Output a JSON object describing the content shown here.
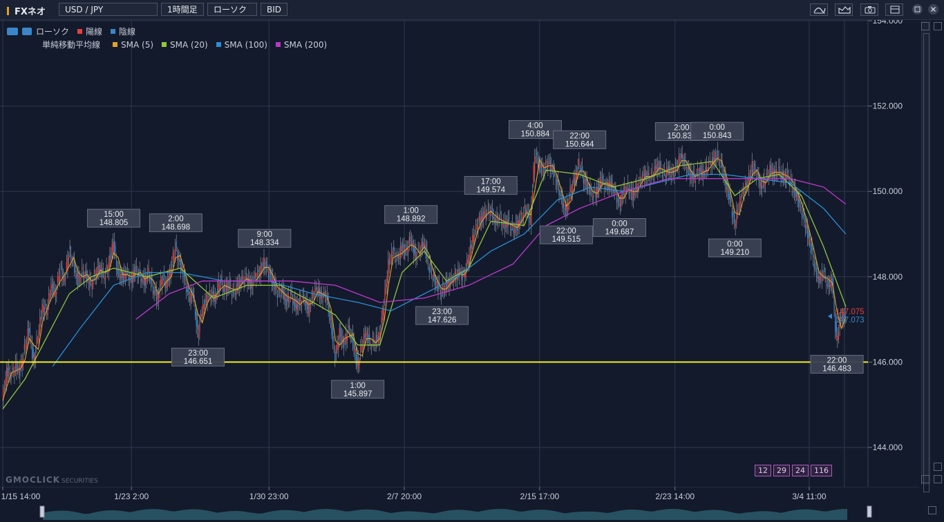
{
  "toolbar": {
    "brand": "FXネオ",
    "symbol": "USD / JPY",
    "timeframe": "1時間足",
    "chart_type": "ローソク",
    "price_type": "BID",
    "icons": [
      "indicator-icon",
      "draw-icon",
      "camera-icon",
      "window-icon",
      "maximize-icon",
      "close-icon"
    ]
  },
  "legend": {
    "row1": {
      "label": "ローソク",
      "items": [
        {
          "name": "陽線",
          "color": "#e5403e"
        },
        {
          "name": "陰線",
          "color": "#3b86c8"
        }
      ]
    },
    "row2": {
      "label": "単純移動平均線",
      "items": [
        {
          "name": "SMA (5)",
          "color": "#e2a224"
        },
        {
          "name": "SMA (20)",
          "color": "#93c739"
        },
        {
          "name": "SMA (100)",
          "color": "#2b8fd6"
        },
        {
          "name": "SMA (200)",
          "color": "#b638c6"
        }
      ]
    }
  },
  "watermark": {
    "main": "GMOCLICK",
    "sub": "SECURITIES"
  },
  "periods": [
    "12",
    "29",
    "24",
    "116"
  ],
  "current_prices": {
    "ask": "147.075",
    "bid": "147.073",
    "ask_color": "#e5403e",
    "bid_color": "#3b86c8"
  },
  "chart_data": {
    "type": "line",
    "x_ticks": [
      "1/15 14:00",
      "1/23 2:00",
      "1/30 23:00",
      "2/7 20:00",
      "2/15 17:00",
      "2/23 14:00",
      "3/4 11:00"
    ],
    "y_ticks": [
      "154.000",
      "152.000",
      "150.000",
      "148.000",
      "146.000",
      "144.000"
    ],
    "ylim": [
      143.6,
      154.3
    ],
    "horizontal_line": 146.0,
    "price_path": [
      [
        0,
        145.1
      ],
      [
        4,
        145.8
      ],
      [
        8,
        145.7
      ],
      [
        12,
        145.9
      ],
      [
        16,
        145.8
      ],
      [
        20,
        146.3
      ],
      [
        24,
        146.8
      ],
      [
        28,
        146.0
      ],
      [
        32,
        146.6
      ],
      [
        36,
        147.3
      ],
      [
        40,
        147.2
      ],
      [
        44,
        147.8
      ],
      [
        48,
        147.6
      ],
      [
        52,
        148.2
      ],
      [
        56,
        147.9
      ],
      [
        60,
        148.6
      ],
      [
        64,
        148.3
      ],
      [
        68,
        147.9
      ],
      [
        72,
        148.1
      ],
      [
        76,
        148.0
      ],
      [
        80,
        147.8
      ],
      [
        84,
        148.1
      ],
      [
        88,
        148.2
      ],
      [
        92,
        148.0
      ],
      [
        96,
        148.3
      ],
      [
        100,
        148.805
      ],
      [
        104,
        148.1
      ],
      [
        108,
        148.0
      ],
      [
        112,
        148.1
      ],
      [
        116,
        147.9
      ],
      [
        120,
        148.2
      ],
      [
        124,
        148.0
      ],
      [
        128,
        147.9
      ],
      [
        132,
        148.1
      ],
      [
        136,
        147.7
      ],
      [
        140,
        147.5
      ],
      [
        144,
        148.0
      ],
      [
        148,
        147.8
      ],
      [
        152,
        148.2
      ],
      [
        156,
        148.698
      ],
      [
        160,
        148.3
      ],
      [
        164,
        148.0
      ],
      [
        168,
        147.5
      ],
      [
        172,
        147.6
      ],
      [
        176,
        146.651
      ],
      [
        180,
        147.2
      ],
      [
        184,
        147.5
      ],
      [
        188,
        147.6
      ],
      [
        192,
        147.5
      ],
      [
        196,
        147.9
      ],
      [
        200,
        147.7
      ],
      [
        204,
        147.8
      ],
      [
        208,
        147.6
      ],
      [
        212,
        147.8
      ],
      [
        216,
        147.9
      ],
      [
        220,
        148.0
      ],
      [
        224,
        147.8
      ],
      [
        228,
        148.0
      ],
      [
        232,
        148.1
      ],
      [
        236,
        148.334
      ],
      [
        240,
        148.1
      ],
      [
        244,
        147.9
      ],
      [
        248,
        147.6
      ],
      [
        252,
        147.7
      ],
      [
        256,
        147.4
      ],
      [
        260,
        147.6
      ],
      [
        264,
        147.3
      ],
      [
        268,
        147.4
      ],
      [
        272,
        147.5
      ],
      [
        276,
        147.2
      ],
      [
        280,
        147.6
      ],
      [
        284,
        147.7
      ],
      [
        288,
        147.5
      ],
      [
        292,
        147.6
      ],
      [
        296,
        146.9
      ],
      [
        300,
        146.1
      ],
      [
        304,
        146.7
      ],
      [
        308,
        146.4
      ],
      [
        312,
        146.8
      ],
      [
        316,
        146.5
      ],
      [
        320,
        145.897
      ],
      [
        324,
        146.4
      ],
      [
        328,
        146.7
      ],
      [
        332,
        146.4
      ],
      [
        336,
        146.5
      ],
      [
        340,
        146.6
      ],
      [
        344,
        147.4
      ],
      [
        348,
        148.3
      ],
      [
        352,
        148.6
      ],
      [
        356,
        148.4
      ],
      [
        360,
        148.7
      ],
      [
        364,
        148.6
      ],
      [
        368,
        148.892
      ],
      [
        372,
        148.5
      ],
      [
        376,
        148.6
      ],
      [
        380,
        148.8
      ],
      [
        384,
        148.3
      ],
      [
        388,
        148.0
      ],
      [
        392,
        147.8
      ],
      [
        396,
        147.626
      ],
      [
        400,
        147.8
      ],
      [
        404,
        147.9
      ],
      [
        408,
        148.0
      ],
      [
        412,
        148.1
      ],
      [
        416,
        148.0
      ],
      [
        420,
        148.4
      ],
      [
        424,
        148.9
      ],
      [
        428,
        149.2
      ],
      [
        432,
        149.4
      ],
      [
        436,
        149.5
      ],
      [
        440,
        149.574
      ],
      [
        444,
        149.3
      ],
      [
        448,
        149.4
      ],
      [
        452,
        149.2
      ],
      [
        456,
        149.3
      ],
      [
        460,
        149.1
      ],
      [
        464,
        149.2
      ],
      [
        468,
        149.4
      ],
      [
        472,
        149.6
      ],
      [
        476,
        149.3
      ],
      [
        480,
        150.884
      ],
      [
        484,
        150.6
      ],
      [
        488,
        150.5
      ],
      [
        492,
        150.7
      ],
      [
        496,
        150.5
      ],
      [
        500,
        150.2
      ],
      [
        504,
        149.8
      ],
      [
        508,
        149.515
      ],
      [
        512,
        150.0
      ],
      [
        516,
        150.3
      ],
      [
        520,
        150.644
      ],
      [
        524,
        150.3
      ],
      [
        528,
        150.1
      ],
      [
        532,
        149.9
      ],
      [
        536,
        150.0
      ],
      [
        540,
        150.3
      ],
      [
        544,
        150.1
      ],
      [
        548,
        150.2
      ],
      [
        552,
        150.0
      ],
      [
        556,
        149.687
      ],
      [
        560,
        150.0
      ],
      [
        564,
        150.1
      ],
      [
        568,
        149.9
      ],
      [
        572,
        150.1
      ],
      [
        576,
        150.3
      ],
      [
        580,
        150.4
      ],
      [
        584,
        150.3
      ],
      [
        588,
        150.5
      ],
      [
        592,
        150.6
      ],
      [
        596,
        150.4
      ],
      [
        600,
        150.5
      ],
      [
        604,
        150.4
      ],
      [
        608,
        150.6
      ],
      [
        612,
        150.836
      ],
      [
        616,
        150.6
      ],
      [
        620,
        150.4
      ],
      [
        624,
        150.3
      ],
      [
        628,
        150.5
      ],
      [
        632,
        150.4
      ],
      [
        636,
        150.6
      ],
      [
        640,
        150.7
      ],
      [
        644,
        150.843
      ],
      [
        648,
        150.6
      ],
      [
        652,
        150.2
      ],
      [
        656,
        149.8
      ],
      [
        660,
        149.21
      ],
      [
        664,
        149.7
      ],
      [
        668,
        150.0
      ],
      [
        672,
        150.2
      ],
      [
        676,
        150.6
      ],
      [
        680,
        150.4
      ],
      [
        684,
        150.1
      ],
      [
        688,
        150.3
      ],
      [
        692,
        150.5
      ],
      [
        696,
        150.4
      ],
      [
        700,
        150.5
      ],
      [
        704,
        150.3
      ],
      [
        708,
        150.4
      ],
      [
        712,
        150.1
      ],
      [
        716,
        149.9
      ],
      [
        720,
        149.6
      ],
      [
        724,
        149.2
      ],
      [
        728,
        148.8
      ],
      [
        732,
        148.3
      ],
      [
        736,
        147.9
      ],
      [
        740,
        148.1
      ],
      [
        744,
        147.8
      ],
      [
        748,
        147.9
      ],
      [
        752,
        146.483
      ],
      [
        756,
        147.1
      ],
      [
        760,
        147.0
      ]
    ],
    "sma20": [
      [
        0,
        144.9
      ],
      [
        20,
        145.6
      ],
      [
        40,
        146.6
      ],
      [
        60,
        147.6
      ],
      [
        80,
        148.0
      ],
      [
        100,
        148.2
      ],
      [
        130,
        148.0
      ],
      [
        160,
        148.2
      ],
      [
        190,
        147.5
      ],
      [
        220,
        147.8
      ],
      [
        250,
        147.8
      ],
      [
        280,
        147.4
      ],
      [
        300,
        147.1
      ],
      [
        320,
        146.4
      ],
      [
        340,
        146.4
      ],
      [
        360,
        148.1
      ],
      [
        380,
        148.6
      ],
      [
        400,
        147.9
      ],
      [
        420,
        148.2
      ],
      [
        440,
        149.3
      ],
      [
        470,
        149.2
      ],
      [
        490,
        150.5
      ],
      [
        520,
        150.4
      ],
      [
        550,
        150.1
      ],
      [
        580,
        150.3
      ],
      [
        610,
        150.6
      ],
      [
        640,
        150.7
      ],
      [
        660,
        149.9
      ],
      [
        680,
        150.3
      ],
      [
        700,
        150.4
      ],
      [
        720,
        149.9
      ],
      [
        740,
        148.7
      ],
      [
        760,
        147.3
      ]
    ],
    "sma100": [
      [
        45,
        145.9
      ],
      [
        70,
        146.8
      ],
      [
        100,
        147.8
      ],
      [
        130,
        148.1
      ],
      [
        160,
        148.1
      ],
      [
        200,
        147.9
      ],
      [
        240,
        147.9
      ],
      [
        280,
        147.6
      ],
      [
        320,
        147.4
      ],
      [
        350,
        147.2
      ],
      [
        380,
        147.6
      ],
      [
        410,
        148.0
      ],
      [
        440,
        148.6
      ],
      [
        470,
        149.0
      ],
      [
        500,
        149.8
      ],
      [
        530,
        150.1
      ],
      [
        560,
        150.0
      ],
      [
        590,
        150.2
      ],
      [
        620,
        150.4
      ],
      [
        650,
        150.4
      ],
      [
        680,
        150.3
      ],
      [
        710,
        150.2
      ],
      [
        740,
        149.6
      ],
      [
        760,
        149.0
      ]
    ],
    "sma200": [
      [
        120,
        147.0
      ],
      [
        150,
        147.6
      ],
      [
        180,
        147.9
      ],
      [
        220,
        147.9
      ],
      [
        260,
        147.9
      ],
      [
        300,
        147.8
      ],
      [
        340,
        147.4
      ],
      [
        380,
        147.5
      ],
      [
        420,
        147.8
      ],
      [
        460,
        148.3
      ],
      [
        490,
        149.2
      ],
      [
        520,
        149.6
      ],
      [
        560,
        150.0
      ],
      [
        600,
        150.3
      ],
      [
        640,
        150.3
      ],
      [
        680,
        150.3
      ],
      [
        710,
        150.3
      ],
      [
        740,
        150.1
      ],
      [
        760,
        149.7
      ]
    ],
    "annotations": [
      {
        "time": "15:00",
        "price": "148.805",
        "x": 100,
        "y": 148.805,
        "pos": "above"
      },
      {
        "time": "2:00",
        "price": "148.698",
        "x": 156,
        "y": 148.698,
        "pos": "above"
      },
      {
        "time": "9:00",
        "price": "148.334",
        "x": 236,
        "y": 148.334,
        "pos": "above"
      },
      {
        "time": "23:00",
        "price": "146.651",
        "x": 176,
        "y": 146.651,
        "pos": "below"
      },
      {
        "time": "1:00",
        "price": "145.897",
        "x": 320,
        "y": 145.897,
        "pos": "below"
      },
      {
        "time": "1:00",
        "price": "148.892",
        "x": 368,
        "y": 148.892,
        "pos": "above"
      },
      {
        "time": "23:00",
        "price": "147.626",
        "x": 396,
        "y": 147.626,
        "pos": "below"
      },
      {
        "time": "17:00",
        "price": "149.574",
        "x": 440,
        "y": 149.574,
        "pos": "above"
      },
      {
        "time": "4:00",
        "price": "150.884",
        "x": 480,
        "y": 150.884,
        "pos": "above"
      },
      {
        "time": "22:00",
        "price": "150.644",
        "x": 520,
        "y": 150.644,
        "pos": "above"
      },
      {
        "time": "22:00",
        "price": "149.515",
        "x": 508,
        "y": 149.515,
        "pos": "below"
      },
      {
        "time": "0:00",
        "price": "149.687",
        "x": 556,
        "y": 149.687,
        "pos": "below"
      },
      {
        "time": "2:00",
        "price": "150.836",
        "x": 612,
        "y": 150.836,
        "pos": "above"
      },
      {
        "time": "0:00",
        "price": "150.843",
        "x": 644,
        "y": 150.843,
        "pos": "above"
      },
      {
        "time": "0:00",
        "price": "149.210",
        "x": 660,
        "y": 149.21,
        "pos": "below"
      },
      {
        "time": "22:00",
        "price": "146.483",
        "x": 752,
        "y": 146.483,
        "pos": "below"
      }
    ]
  }
}
